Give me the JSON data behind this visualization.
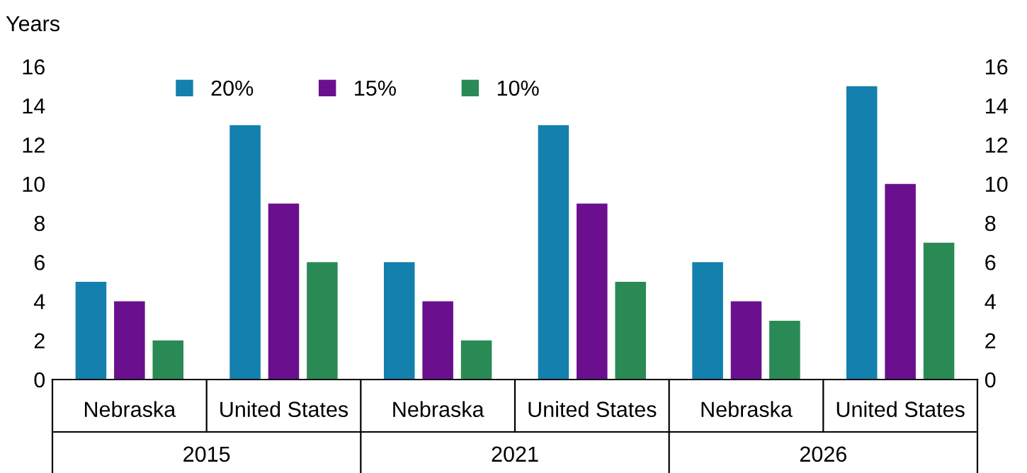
{
  "chart_data": {
    "type": "bar",
    "ylabel": "Years",
    "categories": [
      "Nebraska",
      "United States",
      "Nebraska",
      "United States",
      "Nebraska",
      "United States"
    ],
    "annotations": [
      "2015",
      "2021",
      "2026"
    ],
    "series": [
      {
        "name": "20%",
        "color": "#1380ad",
        "values": [
          5,
          13,
          6,
          13,
          6,
          15
        ]
      },
      {
        "name": "15%",
        "color": "#6a0f8e",
        "values": [
          4,
          9,
          4,
          9,
          4,
          10
        ]
      },
      {
        "name": "10%",
        "color": "#2a8a55",
        "values": [
          2,
          6,
          2,
          5,
          3,
          7
        ]
      }
    ],
    "ylim": [
      0,
      16
    ],
    "yticks": [
      0,
      2,
      4,
      6,
      8,
      10,
      12,
      14,
      16
    ],
    "y2lim": [
      0,
      16
    ],
    "y2ticks": [
      0,
      2,
      4,
      6,
      8,
      10,
      12,
      14,
      16
    ],
    "grid": false,
    "legend": "top"
  }
}
